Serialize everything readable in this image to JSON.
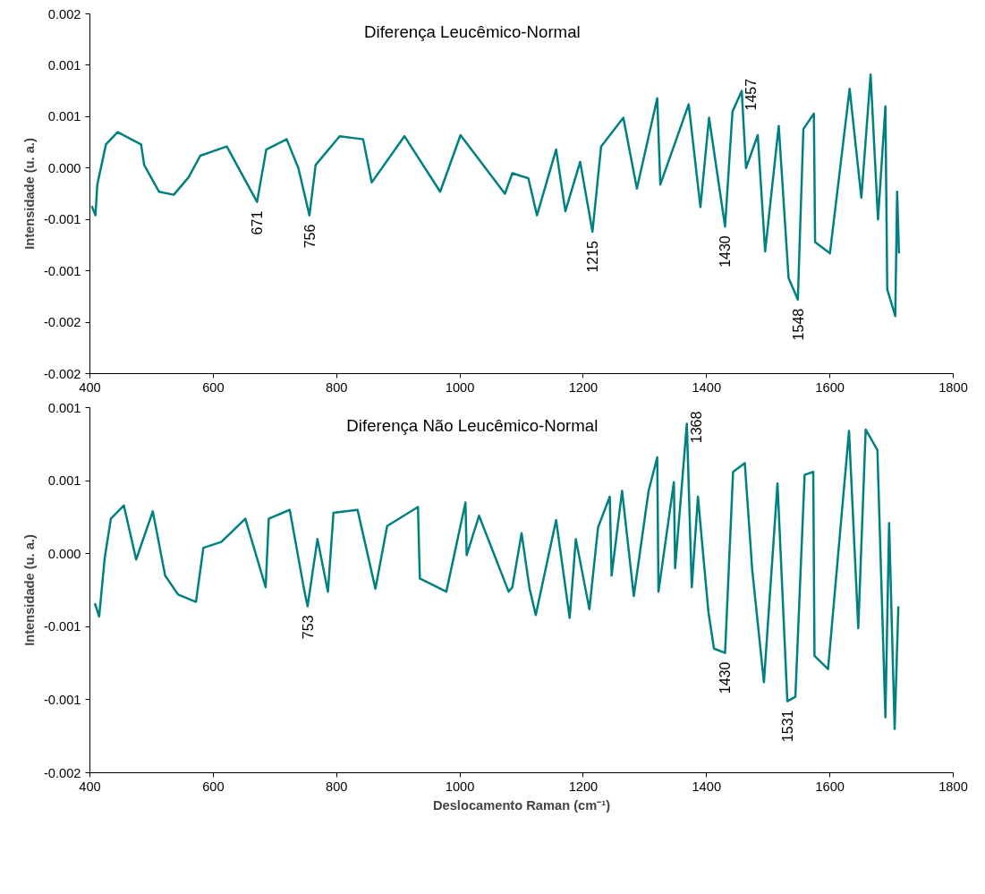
{
  "chart_data": [
    {
      "type": "line",
      "title": "Diferença Leucêmico-Normal",
      "ylabel": "Intensidade (u. a.)",
      "color": "#008080",
      "x": [
        403,
        409,
        412,
        426,
        445,
        483,
        488,
        512,
        536,
        560,
        579,
        622,
        671,
        686,
        719,
        738,
        756,
        766,
        805,
        843,
        857,
        910,
        968,
        1001,
        1073,
        1085,
        1111,
        1125,
        1156,
        1171,
        1195,
        1215,
        1229,
        1265,
        1287,
        1320,
        1325,
        1371,
        1390,
        1404,
        1430,
        1442,
        1457,
        1464,
        1483,
        1495,
        1517,
        1533,
        1548,
        1557,
        1574,
        1576,
        1600,
        1632,
        1651,
        1666,
        1678,
        1690,
        1693,
        1706,
        1709,
        1712
      ],
      "values": [
        -0.00037,
        -0.00046,
        -0.00016,
        0.00023,
        0.00035,
        0.00023,
        3e-05,
        -0.00023,
        -0.00026,
        -9e-05,
        0.00012,
        0.00021,
        -0.00033,
        0.00018,
        0.00028,
        0.0,
        -0.00046,
        3e-05,
        0.00031,
        0.00028,
        -0.00014,
        0.00031,
        -0.00023,
        0.00032,
        -0.00025,
        -5e-05,
        -0.0001,
        -0.00046,
        0.00018,
        -0.00042,
        6e-05,
        -0.00062,
        0.00021,
        0.00049,
        -0.0002,
        0.00068,
        -0.00016,
        0.00062,
        -0.00038,
        0.00049,
        -0.00057,
        0.00055,
        0.00075,
        0.0,
        0.00032,
        -0.00081,
        0.00041,
        -0.00107,
        -0.00128,
        0.00038,
        0.00053,
        -0.00072,
        -0.00083,
        0.00077,
        -0.00029,
        0.00091,
        -0.0005,
        0.0006,
        -0.00118,
        -0.00144,
        -0.00023,
        -0.00083
      ],
      "xlim": [
        400,
        1800
      ],
      "xticks": [
        400,
        600,
        800,
        1000,
        1200,
        1400,
        1600,
        1800
      ],
      "ylim": [
        -0.002,
        0.0015
      ],
      "yticks": [
        {
          "value": -0.002,
          "label": "-0.002"
        },
        {
          "value": -0.0015,
          "label": "-0.002"
        },
        {
          "value": -0.001,
          "label": "-0.001"
        },
        {
          "value": -0.0005,
          "label": "-0.001"
        },
        {
          "value": 0,
          "label": "0.000"
        },
        {
          "value": 0.0005,
          "label": "0.001"
        },
        {
          "value": 0.001,
          "label": "0.001"
        },
        {
          "value": 0.0015,
          "label": "0.002"
        }
      ],
      "annotations": [
        {
          "text": "671",
          "x": 671,
          "y": -0.00033
        },
        {
          "text": "756",
          "x": 756,
          "y": -0.00046
        },
        {
          "text": "1215",
          "x": 1215,
          "y": -0.00062
        },
        {
          "text": "1430",
          "x": 1430,
          "y": -0.00057
        },
        {
          "text": "1548",
          "x": 1548,
          "y": -0.00128
        },
        {
          "text": "1457",
          "x": 1457,
          "y": 0.00075
        }
      ]
    },
    {
      "type": "line",
      "title": "Diferença Não Leucêmico-Normal",
      "ylabel": "Intensidade (u. a.)",
      "xlabel": "Deslocamento Raman (cm⁻¹)",
      "color": "#008080",
      "x": [
        408,
        415,
        424,
        434,
        455,
        475,
        502,
        522,
        543,
        572,
        584,
        613,
        652,
        685,
        690,
        724,
        748,
        753,
        769,
        786,
        795,
        834,
        863,
        882,
        932,
        935,
        978,
        1009,
        1011,
        1031,
        1079,
        1085,
        1100,
        1113,
        1123,
        1156,
        1178,
        1188,
        1210,
        1224,
        1243,
        1246,
        1263,
        1282,
        1306,
        1320,
        1322,
        1347,
        1349,
        1368,
        1376,
        1386,
        1403,
        1412,
        1430,
        1443,
        1462,
        1474,
        1493,
        1515,
        1531,
        1544,
        1559,
        1573,
        1575,
        1597,
        1631,
        1646,
        1658,
        1677,
        1690,
        1696,
        1705,
        1711
      ],
      "values": [
        -0.00034,
        -0.00043,
        -3e-05,
        0.00024,
        0.00033,
        -4e-05,
        0.00029,
        -0.00015,
        -0.00028,
        -0.00033,
        4e-05,
        8e-05,
        0.00024,
        -0.00023,
        0.00024,
        0.0003,
        -0.00026,
        -0.00036,
        0.0001,
        -0.00026,
        0.00028,
        0.0003,
        -0.00024,
        0.00019,
        0.00032,
        -0.00017,
        -0.00026,
        0.00035,
        -1e-05,
        0.00026,
        -0.00026,
        -0.00023,
        0.00014,
        -0.00024,
        -0.00042,
        0.00023,
        -0.00044,
        0.0001,
        -0.00038,
        0.00018,
        0.00039,
        -0.00015,
        0.00043,
        -0.00029,
        0.00043,
        0.00066,
        -0.00026,
        0.00049,
        -0.0001,
        0.00089,
        -0.00023,
        0.00039,
        -0.0004,
        -0.00065,
        -0.00068,
        0.00056,
        0.00062,
        -0.00011,
        -0.00088,
        0.00048,
        -0.00101,
        -0.00098,
        0.00054,
        0.00056,
        -0.0007,
        -0.00079,
        0.00084,
        -0.00051,
        0.00085,
        0.00071,
        -0.00112,
        0.00021,
        -0.0012,
        -0.00036
      ],
      "xlim": [
        400,
        1800
      ],
      "xticks": [
        400,
        600,
        800,
        1000,
        1200,
        1400,
        1600,
        1800
      ],
      "ylim": [
        -0.0015,
        0.001
      ],
      "yticks": [
        {
          "value": -0.0015,
          "label": "-0.002"
        },
        {
          "value": -0.001,
          "label": "-0.001"
        },
        {
          "value": -0.0005,
          "label": "-0.001"
        },
        {
          "value": 0,
          "label": "0.000"
        },
        {
          "value": 0.0005,
          "label": "0.001"
        },
        {
          "value": 0.001,
          "label": "0.001"
        }
      ],
      "annotations": [
        {
          "text": "753",
          "x": 753,
          "y": -0.00036
        },
        {
          "text": "1368",
          "x": 1368,
          "y": 0.00089
        },
        {
          "text": "1430",
          "x": 1430,
          "y": -0.00068
        },
        {
          "text": "1531",
          "x": 1531,
          "y": -0.00101
        }
      ]
    }
  ]
}
